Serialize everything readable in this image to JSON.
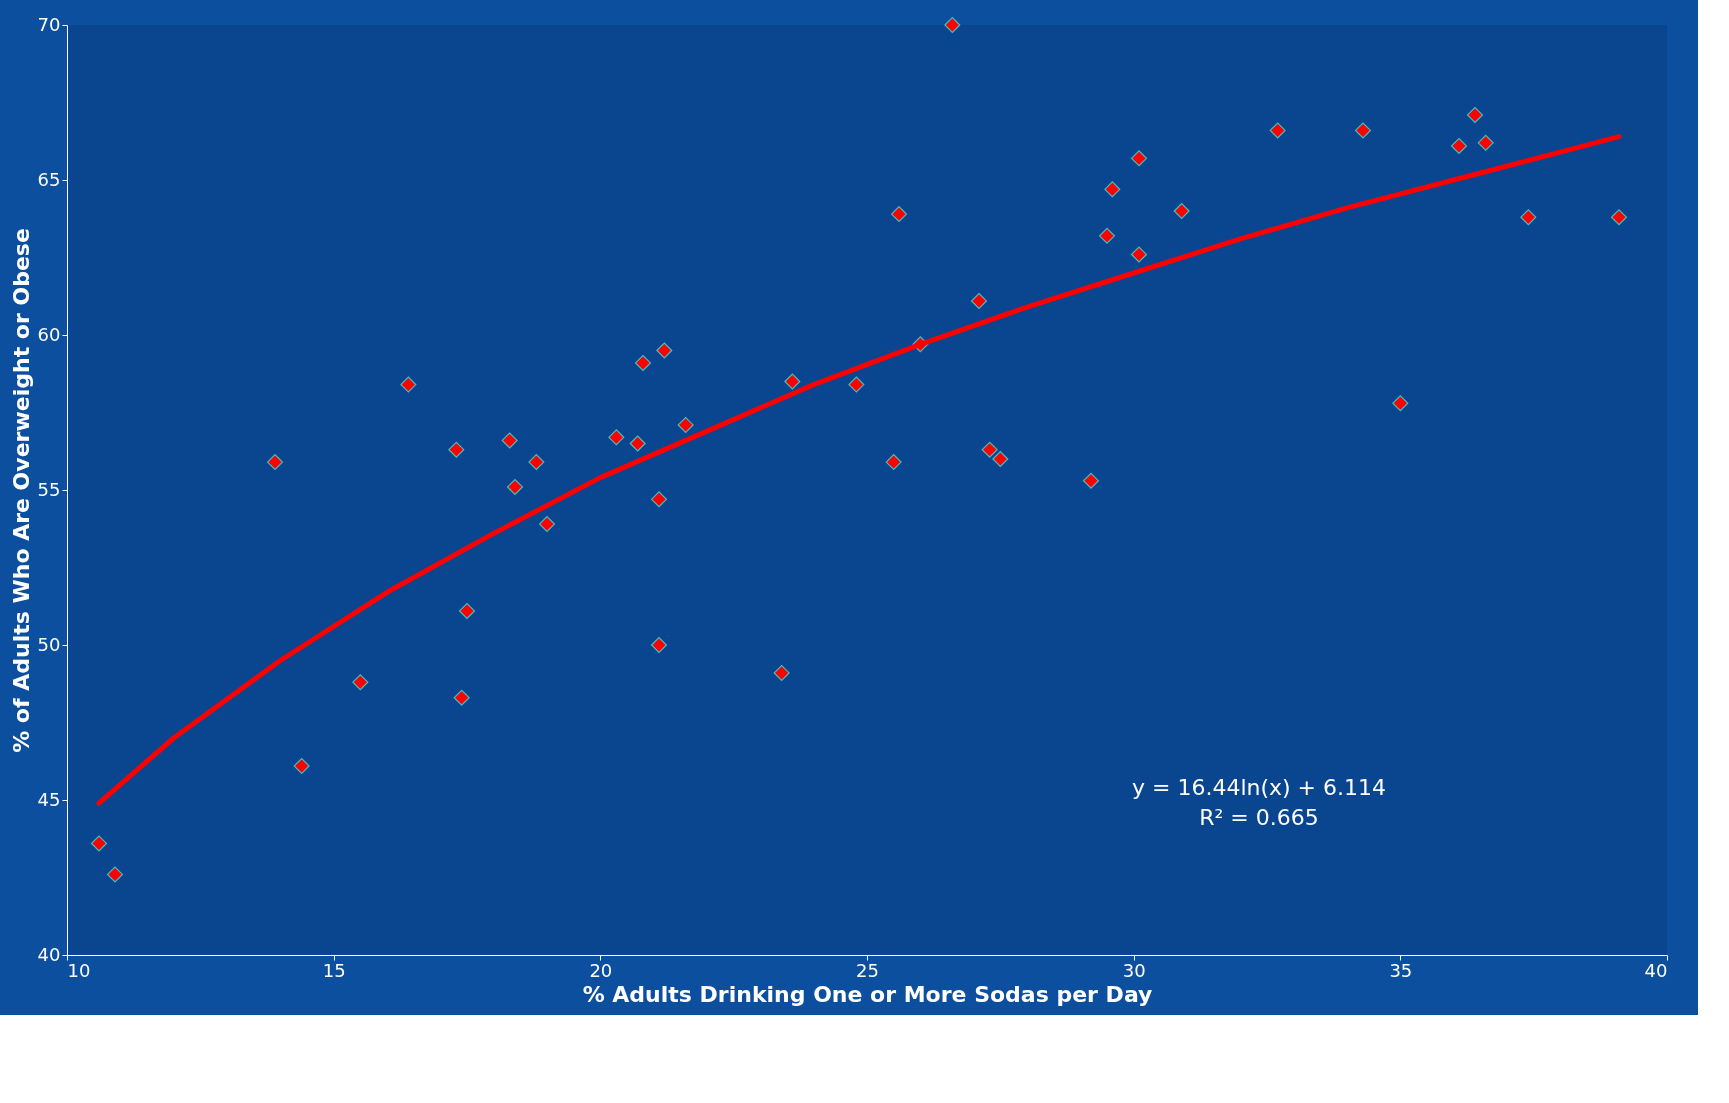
{
  "chart_data": {
    "type": "scatter",
    "xlabel": "% Adults Drinking One or More Sodas per Day",
    "ylabel": "% of Adults Who Are Overweight or Obese",
    "xlim": [
      10,
      40
    ],
    "xticks": [
      10,
      15,
      20,
      25,
      30,
      35,
      40
    ],
    "ylim": [
      40,
      70
    ],
    "yticks": [
      40,
      45,
      50,
      55,
      60,
      65,
      70
    ],
    "grid": false,
    "series": [
      {
        "type": "scatter",
        "marker": "diamond",
        "color": "#ff0000",
        "x": [
          10.6,
          10.9,
          13.9,
          14.4,
          15.5,
          16.4,
          17.3,
          17.4,
          17.5,
          18.3,
          18.4,
          18.8,
          19.0,
          20.3,
          20.7,
          20.8,
          21.1,
          21.1,
          21.2,
          21.6,
          23.4,
          23.6,
          24.8,
          25.5,
          25.6,
          26.0,
          26.6,
          27.1,
          27.3,
          27.5,
          29.2,
          29.5,
          29.6,
          30.1,
          30.1,
          30.9,
          32.7,
          34.3,
          35.0,
          36.1,
          36.4,
          36.6,
          37.4,
          39.1
        ],
        "values": [
          43.6,
          42.6,
          55.9,
          46.1,
          48.8,
          58.4,
          56.3,
          48.3,
          51.1,
          56.6,
          55.1,
          55.9,
          53.9,
          56.7,
          56.5,
          59.1,
          54.7,
          50.0,
          59.5,
          57.1,
          49.1,
          58.5,
          58.4,
          55.9,
          63.9,
          59.7,
          70.0,
          61.1,
          56.3,
          56.0,
          55.3,
          63.2,
          64.7,
          65.7,
          62.6,
          64.0,
          66.6,
          66.6,
          57.8,
          66.1,
          67.1,
          66.2,
          63.8,
          63.8
        ]
      },
      {
        "type": "line",
        "line_style": "solid",
        "marker": "none",
        "color": "#ff0000",
        "x": [
          10.6,
          12,
          14,
          16,
          18,
          20,
          22,
          24,
          26,
          28,
          30,
          32,
          34,
          36,
          38,
          39.1
        ],
        "values": [
          44.9,
          47.0,
          49.5,
          51.7,
          53.6,
          55.4,
          56.9,
          58.4,
          59.7,
          60.9,
          62.0,
          63.1,
          64.1,
          65.0,
          65.9,
          66.4
        ]
      }
    ],
    "annotations": [
      "y = 16.44ln(x) + 6.114",
      "R² = 0.665"
    ]
  }
}
